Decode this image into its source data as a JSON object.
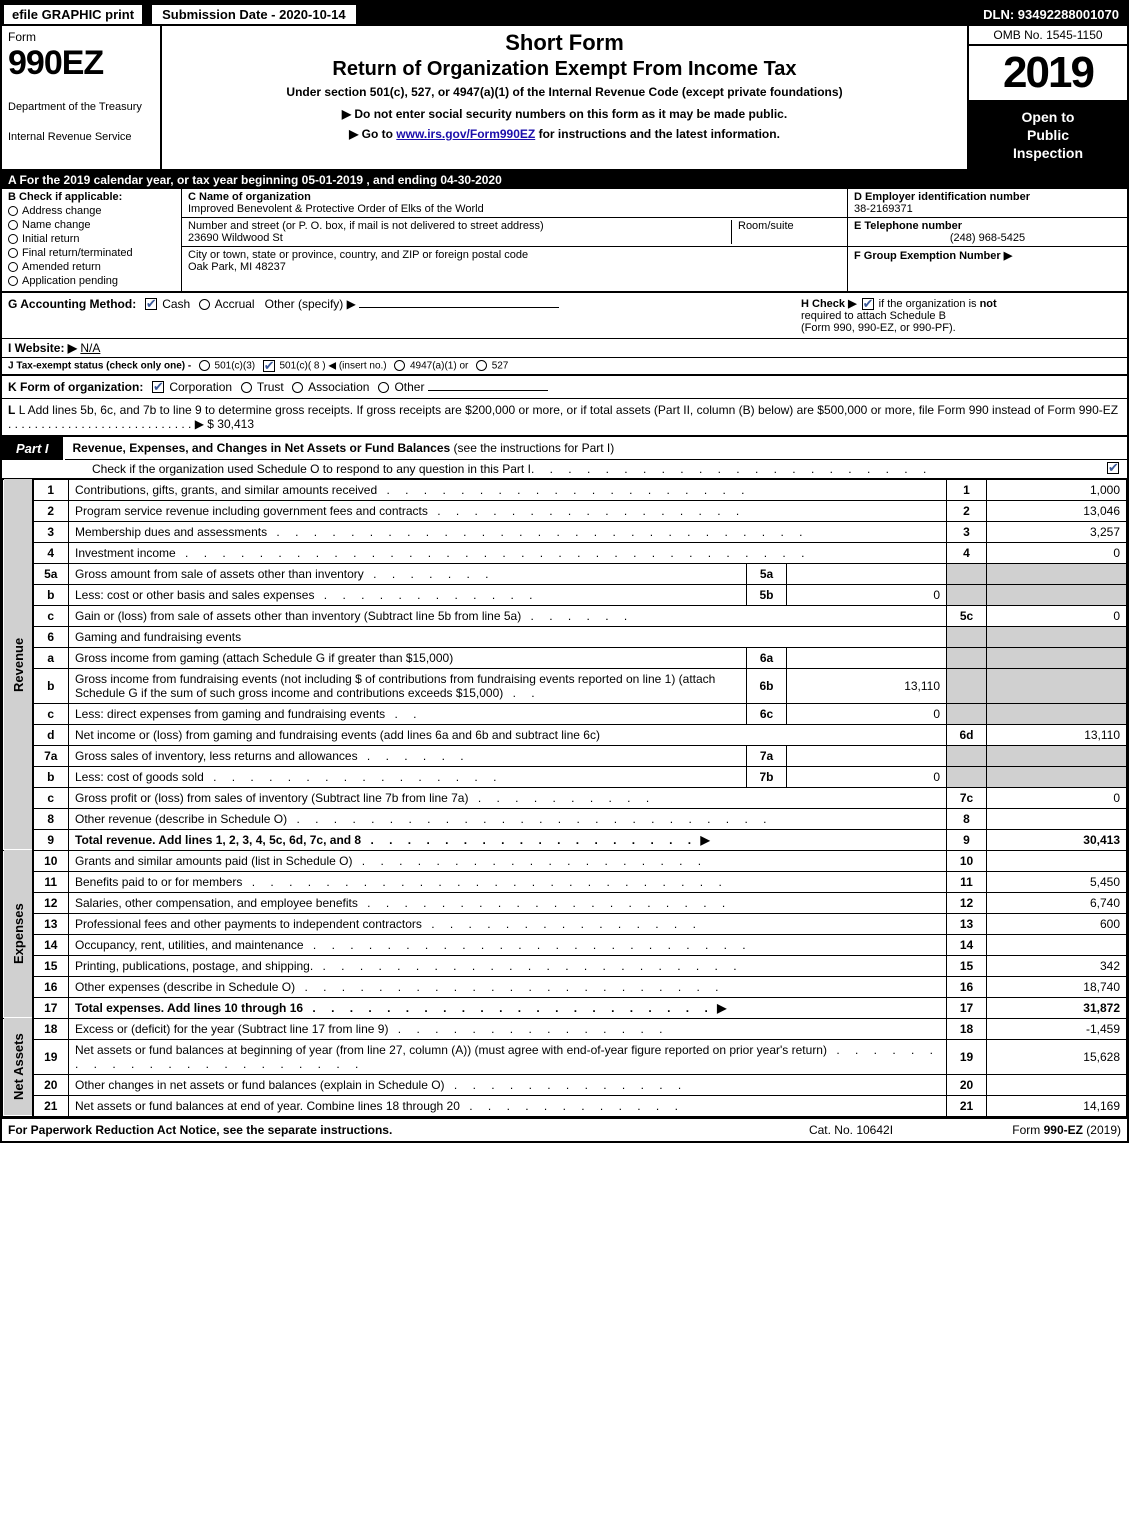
{
  "topbar": {
    "efile": "efile GRAPHIC print",
    "submission": "Submission Date - 2020-10-14",
    "dln": "DLN: 93492288001070"
  },
  "header": {
    "form_word": "Form",
    "form_num": "990EZ",
    "dept1": "Department of the Treasury",
    "dept2": "Internal Revenue Service",
    "short_form": "Short Form",
    "title2": "Return of Organization Exempt From Income Tax",
    "subtitle": "Under section 501(c), 527, or 4947(a)(1) of the Internal Revenue Code (except private foundations)",
    "note": "▶ Do not enter social security numbers on this form as it may be made public.",
    "link_pre": "▶ Go to ",
    "link_text": "www.irs.gov/Form990EZ",
    "link_post": " for instructions and the latest information.",
    "omb": "OMB No. 1545-1150",
    "year": "2019",
    "open1": "Open to",
    "open2": "Public",
    "open3": "Inspection"
  },
  "section_a": "A  For the 2019 calendar year, or tax year beginning 05-01-2019 , and ending 04-30-2020",
  "col_b": {
    "head": "B  Check if applicable:",
    "items": [
      "Address change",
      "Name change",
      "Initial return",
      "Final return/terminated",
      "Amended return",
      "Application pending"
    ]
  },
  "col_c": {
    "name_lbl": "C Name of organization",
    "name_val": "Improved Benevolent & Protective Order of Elks of the World",
    "addr_lbl": "Number and street (or P. O. box, if mail is not delivered to street address)",
    "room_lbl": "Room/suite",
    "addr_val": "23690 Wildwood St",
    "city_lbl": "City or town, state or province, country, and ZIP or foreign postal code",
    "city_val": "Oak Park, MI  48237"
  },
  "col_def": {
    "d_lbl": "D Employer identification number",
    "d_val": "38-2169371",
    "e_lbl": "E Telephone number",
    "e_val": "(248) 968-5425",
    "f_lbl": "F Group Exemption Number  ▶"
  },
  "ghi": {
    "g": "G Accounting Method:",
    "g_cash": "Cash",
    "g_accrual": "Accrual",
    "g_other": "Other (specify) ▶",
    "h": "H  Check ▶",
    "h_text1": " if the organization is ",
    "h_not": "not",
    "h_text2": " required to attach Schedule B",
    "h_text3": "(Form 990, 990-EZ, or 990-PF).",
    "i": "I Website: ▶",
    "i_val": "N/A",
    "j": "J Tax-exempt status (check only one) -",
    "j_opts": [
      "501(c)(3)",
      "501(c)( 8 ) ◀ (insert no.)",
      "4947(a)(1) or",
      "527"
    ]
  },
  "k_line": {
    "pre": "K Form of organization:",
    "opts": [
      "Corporation",
      "Trust",
      "Association",
      "Other"
    ]
  },
  "l_line": {
    "text": "L Add lines 5b, 6c, and 7b to line 9 to determine gross receipts. If gross receipts are $200,000 or more, or if total assets (Part II, column (B) below) are $500,000 or more, file Form 990 instead of Form 990-EZ",
    "dots": " . . . . . . . . . . . . . . . . . . . . . . . . . . . . ▶",
    "amount": "$ 30,413"
  },
  "part1": {
    "tab": "Part I",
    "title_bold": "Revenue, Expenses, and Changes in Net Assets or Fund Balances",
    "title_rest": " (see the instructions for Part I)",
    "sub": "Check if the organization used Schedule O to respond to any question in this Part I",
    "sub_dots": " . . . . . . . . . . . . . . . . . . . . . ."
  },
  "side_labels": {
    "revenue": "Revenue",
    "expenses": "Expenses",
    "netassets": "Net Assets"
  },
  "rows": [
    {
      "n": "1",
      "desc": "Contributions, gifts, grants, and similar amounts received",
      "dots": " . . . . . . . . . . . . . . . . . . . .",
      "num": "1",
      "val": "1,000"
    },
    {
      "n": "2",
      "desc": "Program service revenue including government fees and contracts",
      "dots": " . . . . . . . . . . . . . . . . .",
      "num": "2",
      "val": "13,046"
    },
    {
      "n": "3",
      "desc": "Membership dues and assessments",
      "dots": " . . . . . . . . . . . . . . . . . . . . . . . . . . . . .",
      "num": "3",
      "val": "3,257"
    },
    {
      "n": "4",
      "desc": "Investment income",
      "dots": " . . . . . . . . . . . . . . . . . . . . . . . . . . . . . . . . . .",
      "num": "4",
      "val": "0"
    },
    {
      "n": "5a",
      "desc": "Gross amount from sale of assets other than inventory",
      "dots": " . . . . . . .",
      "innum": "5a",
      "inval": ""
    },
    {
      "n": "b",
      "desc": "Less: cost or other basis and sales expenses",
      "dots": " . . . . . . . . . . . .",
      "innum": "5b",
      "inval": "0"
    },
    {
      "n": "c",
      "desc": "Gain or (loss) from sale of assets other than inventory (Subtract line 5b from line 5a)",
      "dots": " . . . . . .",
      "num": "5c",
      "val": "0"
    },
    {
      "n": "6",
      "desc": "Gaming and fundraising events",
      "noRight": true
    },
    {
      "n": "a",
      "desc": "Gross income from gaming (attach Schedule G if greater than $15,000)",
      "innum": "6a",
      "inval": ""
    },
    {
      "n": "b",
      "desc": "Gross income from fundraising events (not including $                          of contributions from fundraising events reported on line 1) (attach Schedule G if the sum of such gross income and contributions exceeds $15,000)",
      "dots": "   .  .",
      "innum": "6b",
      "inval": "13,110"
    },
    {
      "n": "c",
      "desc": "Less: direct expenses from gaming and fundraising events",
      "dots": "   .  .",
      "innum": "6c",
      "inval": "0"
    },
    {
      "n": "d",
      "desc": "Net income or (loss) from gaming and fundraising events (add lines 6a and 6b and subtract line 6c)",
      "num": "6d",
      "val": "13,110"
    },
    {
      "n": "7a",
      "desc": "Gross sales of inventory, less returns and allowances",
      "dots": " . . . . . .",
      "innum": "7a",
      "inval": ""
    },
    {
      "n": "b",
      "desc": "Less: cost of goods sold",
      "dots": "     . . . . . . . . . . . . . . . .",
      "innum": "7b",
      "inval": "0"
    },
    {
      "n": "c",
      "desc": "Gross profit or (loss) from sales of inventory (Subtract line 7b from line 7a)",
      "dots": " . . . . . . . . . .",
      "num": "7c",
      "val": "0"
    },
    {
      "n": "8",
      "desc": "Other revenue (describe in Schedule O)",
      "dots": " . . . . . . . . . . . . . . . . . . . . . . . . . .",
      "num": "8",
      "val": ""
    },
    {
      "n": "9",
      "desc_bold": "Total revenue.",
      "desc": " Add lines 1, 2, 3, 4, 5c, 6d, 7c, and 8",
      "dots": "  . . . . . . . . . . . . . . . . . .",
      "arrow": "▶",
      "num": "9",
      "val": "30,413",
      "bold": true
    }
  ],
  "exp_rows": [
    {
      "n": "10",
      "desc": "Grants and similar amounts paid (list in Schedule O)",
      "dots": " . . . . . . . . . . . . . . . . . . .",
      "num": "10",
      "val": ""
    },
    {
      "n": "11",
      "desc": "Benefits paid to or for members",
      "dots": "     . . . . . . . . . . . . . . . . . . . . . . . . . .",
      "num": "11",
      "val": "5,450"
    },
    {
      "n": "12",
      "desc": "Salaries, other compensation, and employee benefits",
      "dots": " . . . . . . . . . . . . . . . . . . . .",
      "num": "12",
      "val": "6,740"
    },
    {
      "n": "13",
      "desc": "Professional fees and other payments to independent contractors",
      "dots": " . . . . . . . . . . . . . . .",
      "num": "13",
      "val": "600"
    },
    {
      "n": "14",
      "desc": "Occupancy, rent, utilities, and maintenance",
      "dots": " . . . . . . . . . . . . . . . . . . . . . . . .",
      "num": "14",
      "val": ""
    },
    {
      "n": "15",
      "desc": "Printing, publications, postage, and shipping.",
      "dots": " . . . . . . . . . . . . . . . . . . . . . . .",
      "num": "15",
      "val": "342"
    },
    {
      "n": "16",
      "desc": "Other expenses (describe in Schedule O)",
      "dots": "     . . . . . . . . . . . . . . . . . . . . . . .",
      "num": "16",
      "val": "18,740"
    },
    {
      "n": "17",
      "desc_bold": "Total expenses.",
      "desc": " Add lines 10 through 16",
      "dots": "     . . . . . . . . . . . . . . . . . . . . . .",
      "arrow": "▶",
      "num": "17",
      "val": "31,872",
      "bold": true
    }
  ],
  "na_rows": [
    {
      "n": "18",
      "desc": "Excess or (deficit) for the year (Subtract line 17 from line 9)",
      "dots": "       . . . . . . . . . . . . . . .",
      "num": "18",
      "val": "-1,459"
    },
    {
      "n": "19",
      "desc": "Net assets or fund balances at beginning of year (from line 27, column (A)) (must agree with end-of-year figure reported on prior year's return)",
      "dots": " . . . . . . . . . . . . . . . . . . . . . .",
      "num": "19",
      "val": "15,628"
    },
    {
      "n": "20",
      "desc": "Other changes in net assets or fund balances (explain in Schedule O)",
      "dots": " . . . . . . . . . . . . .",
      "num": "20",
      "val": ""
    },
    {
      "n": "21",
      "desc": "Net assets or fund balances at end of year. Combine lines 18 through 20",
      "dots": " . . . . . . . . . . . .",
      "num": "21",
      "val": "14,169"
    }
  ],
  "footer": {
    "left": "For Paperwork Reduction Act Notice, see the separate instructions.",
    "mid": "Cat. No. 10642I",
    "right_pre": "Form ",
    "right_form": "990-EZ",
    "right_post": " (2019)"
  },
  "colors": {
    "black": "#000000",
    "white": "#ffffff",
    "grey": "#d0d0d0",
    "link": "#1a0dab",
    "check_blue": "#3b5998"
  }
}
